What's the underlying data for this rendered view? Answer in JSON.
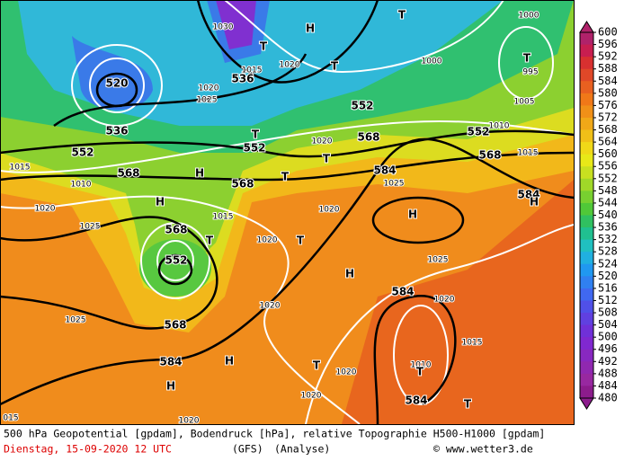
{
  "footer": {
    "line1": "500 hPa Geopotential [gpdam], Bodendruck [hPa], relative Topographie H500-H1000 [gpdam]",
    "date": "Dienstag, 15-09-2020  12 UTC",
    "model": "(GFS)",
    "run": "(Analyse)",
    "credit": "© www.wetter3.de"
  },
  "colorbar": {
    "labels": [
      600,
      596,
      592,
      588,
      584,
      580,
      576,
      572,
      568,
      564,
      560,
      556,
      552,
      548,
      544,
      540,
      536,
      532,
      528,
      524,
      520,
      516,
      512,
      508,
      504,
      500,
      496,
      492,
      488,
      484,
      480
    ],
    "colors": [
      "#b0226a",
      "#c81e50",
      "#d83030",
      "#e04828",
      "#e86020",
      "#f07818",
      "#f09018",
      "#f0a818",
      "#f0c018",
      "#f0d818",
      "#e8e818",
      "#c8e020",
      "#a0d828",
      "#78d030",
      "#50c838",
      "#30c060",
      "#20c090",
      "#20c0c0",
      "#20b0e0",
      "#2098f0",
      "#3080f0",
      "#4068f0",
      "#5050e8",
      "#6040e0",
      "#7030d8",
      "#8028d0",
      "#8828c0",
      "#9028b0",
      "#9828a0",
      "#8c1c8c"
    ]
  },
  "map_labels": [
    "520",
    "536",
    "552",
    "568",
    "536",
    "552",
    "552",
    "568",
    "552",
    "568",
    "584",
    "584",
    "568",
    "568",
    "552",
    "568",
    "584",
    "584",
    "584",
    "1000",
    "995",
    "1005",
    "1010",
    "1015",
    "1020",
    "1020",
    "1025",
    "1015",
    "1010",
    "1020",
    "1025",
    "1015",
    "1020",
    "1020",
    "1025",
    "1025",
    "1020",
    "1015",
    "1010",
    "1020",
    "1025",
    "1020",
    "1020",
    "1020",
    "015",
    "1030",
    "1015",
    "1020",
    "1000",
    "H",
    "T",
    "T",
    "T",
    "T",
    "H",
    "H",
    "T",
    "T",
    "T",
    "H",
    "T",
    "T",
    "H",
    "H",
    "H",
    "T",
    "H",
    "T",
    "T"
  ]
}
